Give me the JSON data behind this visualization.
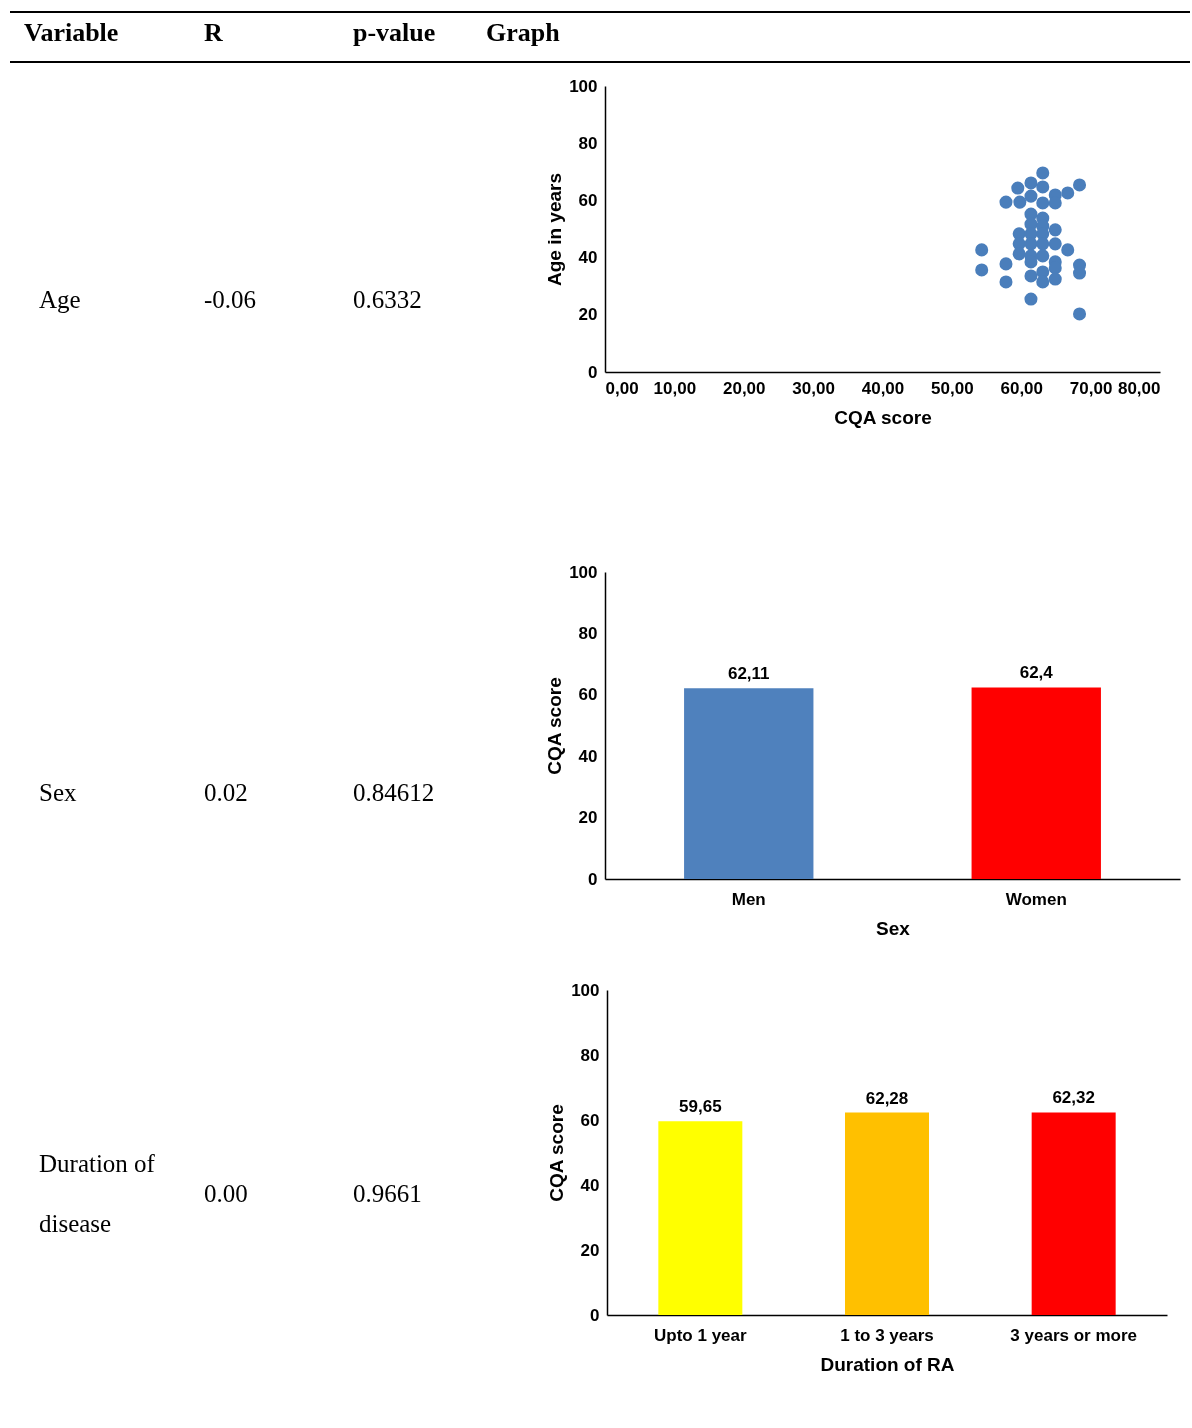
{
  "chart_data": [
    {
      "type": "other",
      "annotations": [
        "Variable",
        "R",
        "p-value",
        "Graph",
        "Age",
        "-0.06",
        "0.6332",
        "Sex",
        "0.02",
        "0.84612",
        "Duration  of disease",
        "0.00",
        "0.9661"
      ]
    },
    {
      "type": "scatter",
      "xlabel": "CQA score",
      "ylabel": "Age in years",
      "color": "#4a7ebb",
      "marker": "circle",
      "x": [
        54.3,
        54.3,
        57.8,
        57.8,
        57.8,
        59.5,
        59.8,
        61.4,
        61.4,
        63.1,
        63.1,
        63.1,
        64.9,
        64.9,
        66.7,
        68.4,
        61.4,
        61.4,
        63.1,
        63.1,
        59.7,
        61.4,
        63.1,
        64.9,
        59.7,
        61.4,
        63.1,
        64.9,
        59.7,
        61.4,
        63.1,
        66.7,
        61.4,
        64.9,
        64.9,
        63.1,
        61.4,
        63.1,
        64.9,
        68.4,
        68.4,
        61.4,
        68.4
      ],
      "values": [
        42.7,
        35.7,
        59.4,
        37.8,
        31.5,
        64.3,
        59.4,
        66.1,
        61.5,
        69.6,
        64.7,
        59.1,
        61.9,
        59.1,
        62.6,
        65.4,
        55.2,
        51.7,
        53.8,
        51,
        48.3,
        48.3,
        48.3,
        49.7,
        44.8,
        44.8,
        44.8,
        44.8,
        41.3,
        40.6,
        40.6,
        42.7,
        38.5,
        38.5,
        36.4,
        35,
        33.6,
        31.5,
        32.5,
        37.4,
        34.6,
        25.5,
        20.3
      ],
      "xlim": [
        0,
        80
      ],
      "xticks": [
        {
          "value": 0,
          "label": "0,00"
        },
        {
          "value": 10,
          "label": "10,00"
        },
        {
          "value": 20,
          "label": "20,00"
        },
        {
          "value": 30,
          "label": "30,00"
        },
        {
          "value": 40,
          "label": "40,00"
        },
        {
          "value": 50,
          "label": "50,00"
        },
        {
          "value": 60,
          "label": "60,00"
        },
        {
          "value": 70,
          "label": "70,00"
        },
        {
          "value": 80,
          "label": "80,00"
        }
      ],
      "ylim": [
        0,
        100
      ],
      "yticks": [
        0,
        20,
        40,
        60,
        80,
        100
      ],
      "grid": false
    },
    {
      "type": "bar",
      "xlabel": "Sex",
      "ylabel": "CQA score",
      "categories": [
        "Men",
        "Women"
      ],
      "values": [
        62.11,
        62.4
      ],
      "colors": [
        "#4f81bd",
        "#ff0000"
      ],
      "value_labels": [
        "62,11",
        "62,4"
      ],
      "ylim": [
        0,
        100
      ],
      "yticks": [
        0,
        20,
        40,
        60,
        80,
        100
      ],
      "grid": false
    },
    {
      "type": "bar",
      "xlabel": "Duration of RA",
      "ylabel": "CQA score",
      "categories": [
        "Upto 1 year",
        "1 to 3 years",
        "3 years or more"
      ],
      "values": [
        59.65,
        62.28,
        62.32
      ],
      "colors": [
        "#ffff00",
        "#ffc000",
        "#ff0000"
      ],
      "value_labels": [
        "59,65",
        "62,28",
        "62,32"
      ],
      "ylim": [
        0,
        100
      ],
      "yticks": [
        0,
        20,
        40,
        60,
        80,
        100
      ],
      "grid": false
    }
  ]
}
